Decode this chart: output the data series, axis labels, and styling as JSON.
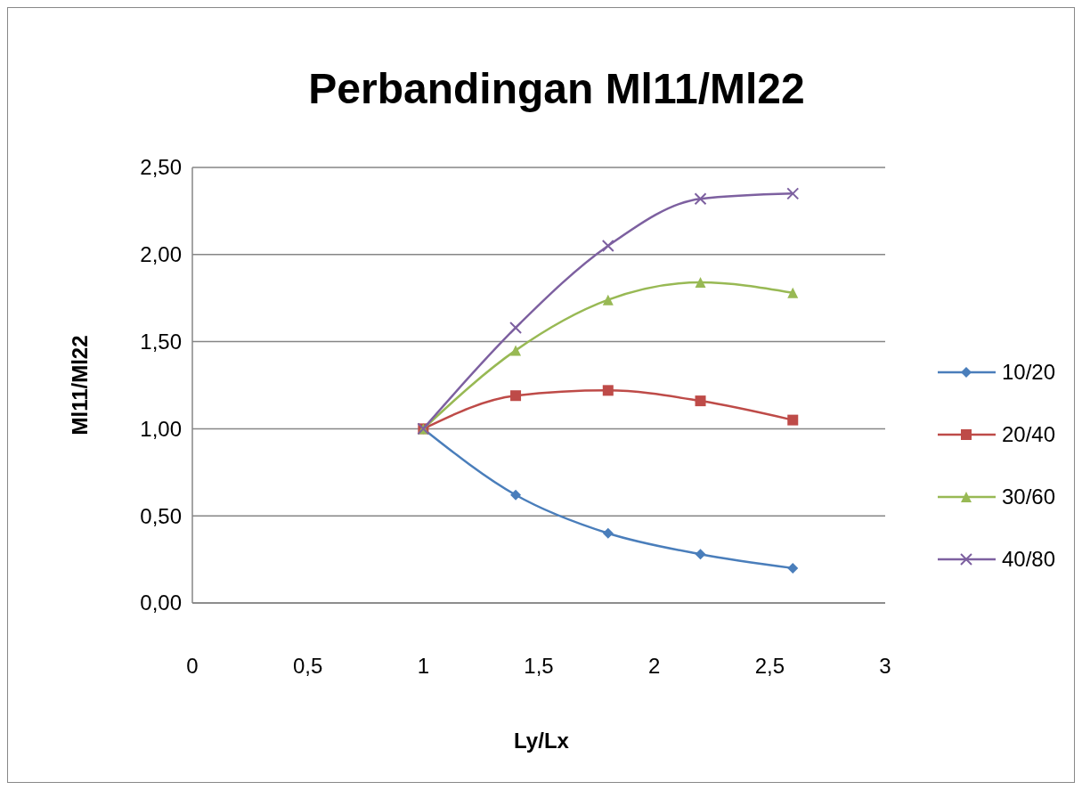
{
  "chart_data": {
    "type": "line",
    "title": "Perbandingan Ml11/Ml22",
    "xlabel": "Ly/Lx",
    "ylabel": "Ml11/Ml22",
    "x": [
      1,
      1.4,
      1.8,
      2.2,
      2.6
    ],
    "series": [
      {
        "name": "10/20",
        "color": "#4a7ebb",
        "marker": "diamond",
        "values": [
          1.0,
          0.62,
          0.4,
          0.28,
          0.2
        ]
      },
      {
        "name": "20/40",
        "color": "#be4b48",
        "marker": "square",
        "values": [
          1.0,
          1.19,
          1.22,
          1.16,
          1.05
        ]
      },
      {
        "name": "30/60",
        "color": "#98b954",
        "marker": "triangle",
        "values": [
          1.0,
          1.45,
          1.74,
          1.84,
          1.78
        ]
      },
      {
        "name": "40/80",
        "color": "#7d60a0",
        "marker": "cross",
        "values": [
          1.0,
          1.58,
          2.05,
          2.32,
          2.35
        ]
      }
    ],
    "xlim": [
      0,
      3
    ],
    "xticks": [
      0,
      {
        "value": 0.5,
        "label": "0,5"
      },
      1,
      {
        "value": 1.5,
        "label": "1,5"
      },
      2,
      {
        "value": 2.5,
        "label": "2,5"
      },
      3
    ],
    "ylim": [
      0,
      2.5
    ],
    "yticks": [
      {
        "value": 0,
        "label": "0,00"
      },
      {
        "value": 0.5,
        "label": "0,50"
      },
      {
        "value": 1,
        "label": "1,00"
      },
      {
        "value": 1.5,
        "label": "1,50"
      },
      {
        "value": 2,
        "label": "2,00"
      },
      {
        "value": 2.5,
        "label": "2,50"
      }
    ],
    "grid": "y",
    "legend": "right",
    "line_style": "solid"
  }
}
